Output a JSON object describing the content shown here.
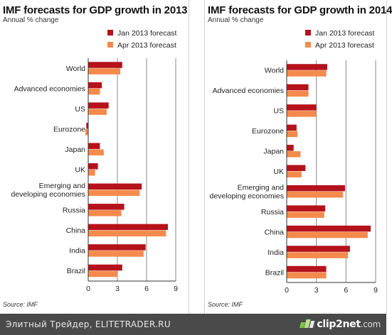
{
  "colors": {
    "jan": "#b5121b",
    "apr": "#f58a4d",
    "grid": "#888888"
  },
  "chart_data": [
    {
      "type": "bar",
      "orientation": "horizontal",
      "title": "IMF forecasts for GDP growth in 2013",
      "subtitle": "Annual % change",
      "source": "Source: IMF",
      "categories": [
        "World",
        "Advanced economies",
        "US",
        "Eurozone",
        "Japan",
        "UK",
        "Emerging and developing economies",
        "Russia",
        "China",
        "India",
        "Brazil"
      ],
      "series": [
        {
          "name": "Jan 2013 forecast",
          "values": [
            3.5,
            1.4,
            2.1,
            -0.2,
            1.2,
            1.0,
            5.5,
            3.7,
            8.2,
            5.9,
            3.5
          ]
        },
        {
          "name": "Apr 2013 forecast",
          "values": [
            3.3,
            1.2,
            1.9,
            -0.3,
            1.6,
            0.7,
            5.3,
            3.4,
            8.0,
            5.7,
            3.0
          ]
        }
      ],
      "xlim": [
        0,
        9
      ],
      "xticks": [
        0,
        3,
        6,
        9
      ],
      "grid": true,
      "legend": "top-right"
    },
    {
      "type": "bar",
      "orientation": "horizontal",
      "title": "IMF forecasts for GDP growth in 2014",
      "subtitle": "Annual % change",
      "source": "Source: IMF",
      "categories": [
        "World",
        "Advanced economies",
        "US",
        "Eurozone",
        "Japan",
        "UK",
        "Emerging and developing economies",
        "Russia",
        "China",
        "India",
        "Brazil"
      ],
      "series": [
        {
          "name": "Jan 2013 forecast",
          "values": [
            4.1,
            2.2,
            3.0,
            1.0,
            0.7,
            1.9,
            5.9,
            3.9,
            8.5,
            6.4,
            4.0
          ]
        },
        {
          "name": "Apr 2013 forecast",
          "values": [
            4.0,
            2.2,
            3.0,
            1.1,
            1.4,
            1.5,
            5.7,
            3.8,
            8.2,
            6.2,
            4.0
          ]
        }
      ],
      "xlim": [
        0,
        9
      ],
      "xticks": [
        0,
        3,
        6,
        9
      ],
      "grid": true,
      "legend": "top-right"
    }
  ],
  "footer": {
    "site": "Элитный Трейдер, ELITETRADER.RU",
    "brand": "clip2net",
    "brand_suffix": ".com"
  }
}
